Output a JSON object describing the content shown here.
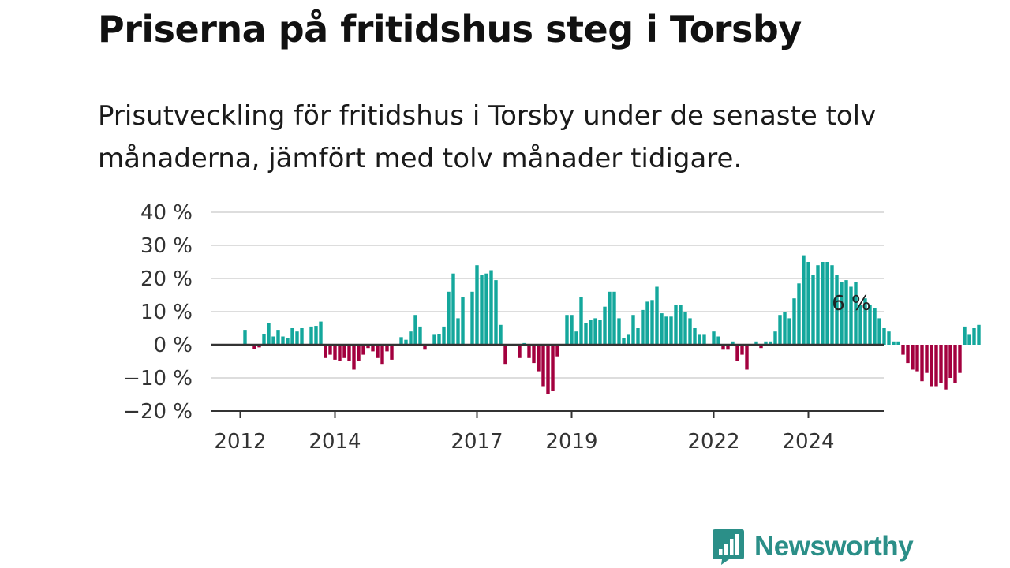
{
  "title": "Priserna på fritidshus steg i Torsby",
  "subtitle": "Prisutveckling för fritidshus i Torsby under de senaste tolv månaderna, jämfört med tolv månader tidigare.",
  "brand": {
    "name": "Newsworthy",
    "icon": "newsworthy-logo-icon",
    "color": "#2b8f88"
  },
  "colors": {
    "positive": "#14a79c",
    "negative": "#a3003e",
    "grid": "#dddddd",
    "axis": "#333333"
  },
  "chart_data": {
    "type": "bar",
    "title": "Priserna på fritidshus steg i Torsby",
    "xlabel": "",
    "ylabel": "",
    "ylim": [
      -20,
      40
    ],
    "yticks": [
      40,
      30,
      20,
      10,
      0,
      -10,
      -20
    ],
    "ytick_labels": [
      "40 %",
      "30 %",
      "20 %",
      "10 %",
      "0 %",
      "−10 %",
      "−20 %"
    ],
    "x_start": "2012-01",
    "xticks": [
      {
        "month_index": 0,
        "label": "2012"
      },
      {
        "month_index": 20,
        "label": "2014"
      },
      {
        "month_index": 50,
        "label": "2017"
      },
      {
        "month_index": 70,
        "label": "2019"
      },
      {
        "month_index": 100,
        "label": "2022"
      },
      {
        "month_index": 120,
        "label": "2024"
      }
    ],
    "annotation": {
      "label": "6 %",
      "value": 6
    },
    "values": [
      null,
      4.5,
      null,
      -1.2,
      -0.8,
      3.2,
      6.5,
      2.5,
      4.5,
      2.5,
      2,
      5,
      4,
      5,
      null,
      5.5,
      5.7,
      7,
      -4,
      -3,
      -4.5,
      -5,
      -4,
      -5,
      -7.5,
      -5,
      -3,
      -1,
      -2,
      -4,
      -6,
      -2,
      -4.5,
      null,
      2.3,
      1.5,
      4,
      9,
      5.5,
      -1.5,
      null,
      3,
      3.2,
      5.5,
      16,
      21.5,
      8,
      14.5,
      null,
      16,
      24,
      21,
      21.5,
      22.5,
      19.5,
      6,
      -6,
      null,
      null,
      -4,
      0.5,
      -4,
      -5.5,
      -8,
      -12.5,
      -15,
      -14,
      -3.5,
      null,
      9,
      9,
      4,
      14.5,
      6.5,
      7.5,
      8,
      7.5,
      11.5,
      16,
      16,
      8,
      2,
      3,
      9,
      5,
      10.5,
      13,
      13.5,
      17.5,
      9.5,
      8.5,
      8.5,
      12,
      12,
      10,
      8,
      5,
      3,
      3,
      null,
      4,
      2.5,
      -1.5,
      -1.5,
      1,
      -5,
      -3,
      -7.5,
      null,
      1,
      -1,
      1,
      1,
      4,
      9,
      10,
      8,
      14,
      18.5,
      27,
      25,
      21,
      24,
      25,
      25,
      24,
      21,
      19,
      19.5,
      17.5,
      19,
      12,
      14,
      12,
      11,
      8,
      5,
      4,
      1,
      1,
      -3,
      -5.5,
      -7.5,
      -8,
      -11,
      -8.5,
      -12.5,
      -12.5,
      -11.5,
      -13.5,
      -10,
      -11.5,
      -8.5,
      5.5,
      3,
      5,
      6
    ]
  }
}
